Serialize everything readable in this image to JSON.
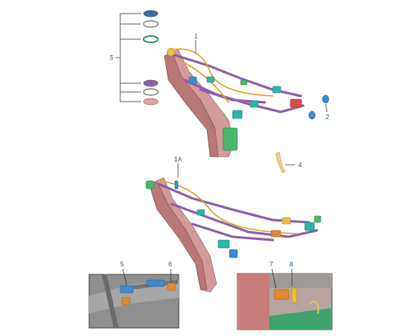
{
  "callouts": {
    "c1": "1",
    "c1a": "1A",
    "c2": "2",
    "c4": "4",
    "c5": "5",
    "c6": "6",
    "c7": "7",
    "c8": "8",
    "c9": "6"
  }
}
